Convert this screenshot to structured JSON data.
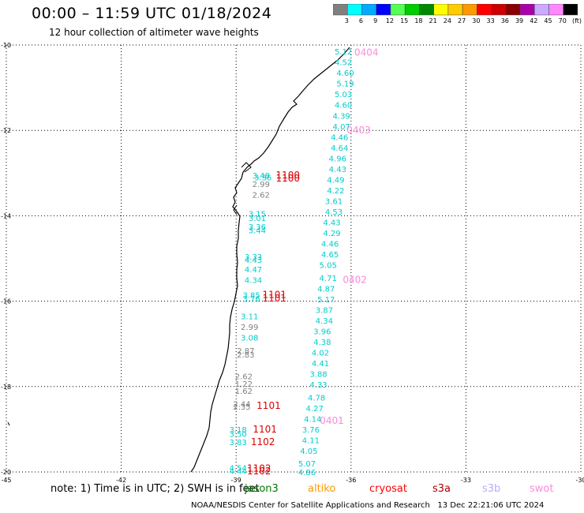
{
  "header": {
    "title": "00:00 – 11:59 UTC 01/18/2024",
    "subtitle": "12 hour collection of altimeter wave heights"
  },
  "colorbar": {
    "colors": [
      "#808080",
      "#00ffff",
      "#00aaff",
      "#0000ff",
      "#55ff55",
      "#00cc00",
      "#008800",
      "#ffff00",
      "#ffcc00",
      "#ff9900",
      "#ff0000",
      "#cc0000",
      "#880000",
      "#aa00aa",
      "#ccaaff",
      "#ff88ff",
      "#000000"
    ],
    "labels": [
      "3",
      "6",
      "9",
      "12",
      "15",
      "18",
      "21",
      "24",
      "27",
      "30",
      "33",
      "36",
      "39",
      "42",
      "45",
      "70",
      "(ft)"
    ]
  },
  "map": {
    "lat_labels": [
      "-10",
      "-12",
      "-14",
      "-16",
      "-18",
      "-20"
    ],
    "lon_labels": [
      "-45",
      "-42",
      "-39",
      "-36",
      "-33",
      "-30"
    ],
    "lat_range": [
      -20,
      -10
    ],
    "lon_range": [
      -45,
      -30
    ]
  },
  "swh_points": [
    {
      "lon": -36.2,
      "lat": -10.15,
      "v": "5.12",
      "c": "#00cccc"
    },
    {
      "lon": -36.2,
      "lat": -10.4,
      "v": "4.52",
      "c": "#00cccc"
    },
    {
      "lon": -36.15,
      "lat": -10.65,
      "v": "4.60",
      "c": "#00cccc"
    },
    {
      "lon": -36.15,
      "lat": -10.9,
      "v": "5.19",
      "c": "#00cccc"
    },
    {
      "lon": -36.2,
      "lat": -11.15,
      "v": "5.03",
      "c": "#00cccc"
    },
    {
      "lon": -36.2,
      "lat": -11.4,
      "v": "4.60",
      "c": "#00cccc"
    },
    {
      "lon": -36.25,
      "lat": -11.65,
      "v": "4.39",
      "c": "#00cccc"
    },
    {
      "lon": -36.25,
      "lat": -11.9,
      "v": "4.07",
      "c": "#00cccc"
    },
    {
      "lon": -36.3,
      "lat": -12.15,
      "v": "4.46",
      "c": "#00cccc"
    },
    {
      "lon": -36.3,
      "lat": -12.4,
      "v": "4.64",
      "c": "#00cccc"
    },
    {
      "lon": -36.35,
      "lat": -12.65,
      "v": "4.96",
      "c": "#00cccc"
    },
    {
      "lon": -36.35,
      "lat": -12.9,
      "v": "4.43",
      "c": "#00cccc"
    },
    {
      "lon": -36.4,
      "lat": -13.15,
      "v": "4.49",
      "c": "#00cccc"
    },
    {
      "lon": -36.4,
      "lat": -13.4,
      "v": "4.22",
      "c": "#00cccc"
    },
    {
      "lon": -36.45,
      "lat": -13.65,
      "v": "3.61",
      "c": "#00cccc"
    },
    {
      "lon": -36.45,
      "lat": -13.9,
      "v": "4.53",
      "c": "#00cccc"
    },
    {
      "lon": -36.5,
      "lat": -14.15,
      "v": "4.43",
      "c": "#00cccc"
    },
    {
      "lon": -36.5,
      "lat": -14.4,
      "v": "4.29",
      "c": "#00cccc"
    },
    {
      "lon": -36.55,
      "lat": -14.65,
      "v": "4.46",
      "c": "#00cccc"
    },
    {
      "lon": -36.55,
      "lat": -14.9,
      "v": "4.65",
      "c": "#00cccc"
    },
    {
      "lon": -36.6,
      "lat": -15.15,
      "v": "5.05",
      "c": "#00cccc"
    },
    {
      "lon": -36.6,
      "lat": -15.45,
      "v": "4.71",
      "c": "#00cccc"
    },
    {
      "lon": -36.65,
      "lat": -15.7,
      "v": "4.87",
      "c": "#00cccc"
    },
    {
      "lon": -36.65,
      "lat": -15.95,
      "v": "5.17",
      "c": "#00cccc"
    },
    {
      "lon": -36.7,
      "lat": -16.2,
      "v": "3.87",
      "c": "#00cccc"
    },
    {
      "lon": -36.7,
      "lat": -16.45,
      "v": "4.34",
      "c": "#00cccc"
    },
    {
      "lon": -36.75,
      "lat": -16.7,
      "v": "3.96",
      "c": "#00cccc"
    },
    {
      "lon": -36.75,
      "lat": -16.95,
      "v": "4.38",
      "c": "#00cccc"
    },
    {
      "lon": -36.8,
      "lat": -17.2,
      "v": "4.02",
      "c": "#00cccc"
    },
    {
      "lon": -36.8,
      "lat": -17.45,
      "v": "4.41",
      "c": "#00cccc"
    },
    {
      "lon": -36.85,
      "lat": -17.7,
      "v": "3.88",
      "c": "#00cccc"
    },
    {
      "lon": -36.85,
      "lat": -17.95,
      "v": "4.33",
      "c": "#00cccc"
    },
    {
      "lon": -36.9,
      "lat": -18.25,
      "v": "4.78",
      "c": "#00cccc"
    },
    {
      "lon": -36.95,
      "lat": -18.5,
      "v": "4.27",
      "c": "#00cccc"
    },
    {
      "lon": -37.0,
      "lat": -18.75,
      "v": "4.14",
      "c": "#00cccc"
    },
    {
      "lon": -37.05,
      "lat": -19.0,
      "v": "3.76",
      "c": "#00cccc"
    },
    {
      "lon": -37.05,
      "lat": -19.25,
      "v": "4.11",
      "c": "#00cccc"
    },
    {
      "lon": -37.1,
      "lat": -19.5,
      "v": "4.05",
      "c": "#00cccc"
    },
    {
      "lon": -37.15,
      "lat": -19.8,
      "v": "5.07",
      "c": "#00cccc"
    },
    {
      "lon": -37.15,
      "lat": -20.0,
      "v": "4.86",
      "c": "#00cccc"
    },
    {
      "lon": -38.35,
      "lat": -13.05,
      "v": "3.48",
      "c": "#00cccc"
    },
    {
      "lon": -38.3,
      "lat": -13.1,
      "v": "3.36",
      "c": "#00cccc"
    },
    {
      "lon": -38.35,
      "lat": -13.25,
      "v": "2.99",
      "c": "#808080"
    },
    {
      "lon": -38.35,
      "lat": -13.5,
      "v": "2.62",
      "c": "#808080"
    },
    {
      "lon": -38.45,
      "lat": -13.95,
      "v": "3.15",
      "c": "#00cccc"
    },
    {
      "lon": -38.45,
      "lat": -14.05,
      "v": "3.01",
      "c": "#00cccc"
    },
    {
      "lon": -38.45,
      "lat": -14.25,
      "v": "3.36",
      "c": "#00cccc"
    },
    {
      "lon": -38.45,
      "lat": -14.33,
      "v": "3.44",
      "c": "#00cccc"
    },
    {
      "lon": -38.55,
      "lat": -14.95,
      "v": "3.33",
      "c": "#00cccc"
    },
    {
      "lon": -38.55,
      "lat": -15.03,
      "v": "4.43",
      "c": "#00cccc"
    },
    {
      "lon": -38.55,
      "lat": -15.25,
      "v": "4.47",
      "c": "#00cccc"
    },
    {
      "lon": -38.55,
      "lat": -15.5,
      "v": "4.34",
      "c": "#00cccc"
    },
    {
      "lon": -38.6,
      "lat": -15.85,
      "v": "3.85",
      "c": "#00cccc"
    },
    {
      "lon": -38.6,
      "lat": -15.93,
      "v": "3.76",
      "c": "#00cccc"
    },
    {
      "lon": -38.65,
      "lat": -16.35,
      "v": "3.11",
      "c": "#00cccc"
    },
    {
      "lon": -38.65,
      "lat": -16.6,
      "v": "2.99",
      "c": "#808080"
    },
    {
      "lon": -38.65,
      "lat": -16.85,
      "v": "3.08",
      "c": "#00cccc"
    },
    {
      "lon": -38.75,
      "lat": -17.15,
      "v": "2.87",
      "c": "#808080"
    },
    {
      "lon": -38.75,
      "lat": -17.25,
      "v": "2.83",
      "c": "#808080"
    },
    {
      "lon": -38.8,
      "lat": -17.75,
      "v": "2.62",
      "c": "#808080"
    },
    {
      "lon": -38.8,
      "lat": -17.93,
      "v": "1.22",
      "c": "#808080"
    },
    {
      "lon": -38.8,
      "lat": -18.1,
      "v": "1.62",
      "c": "#808080"
    },
    {
      "lon": -38.85,
      "lat": -18.4,
      "v": "2.44",
      "c": "#808080"
    },
    {
      "lon": -38.85,
      "lat": -18.47,
      "v": "2.35",
      "c": "#808080"
    },
    {
      "lon": -38.95,
      "lat": -19.0,
      "v": "3.18",
      "c": "#00cccc"
    },
    {
      "lon": -38.95,
      "lat": -19.1,
      "v": "3.50",
      "c": "#00cccc"
    },
    {
      "lon": -38.95,
      "lat": -19.3,
      "v": "3.83",
      "c": "#00cccc"
    },
    {
      "lon": -38.95,
      "lat": -19.9,
      "v": "4.54",
      "c": "#00cccc"
    },
    {
      "lon": -38.95,
      "lat": -19.97,
      "v": "4.44",
      "c": "#00cccc"
    }
  ],
  "pass_labels": [
    {
      "lon": -35.6,
      "lat": -10.18,
      "t": "0404",
      "c": "#ff88dd"
    },
    {
      "lon": -35.8,
      "lat": -12.0,
      "t": "0403",
      "c": "#ff88dd"
    },
    {
      "lon": -35.9,
      "lat": -15.5,
      "t": "0402",
      "c": "#ff88dd"
    },
    {
      "lon": -36.5,
      "lat": -18.8,
      "t": "0401",
      "c": "#ff88dd"
    },
    {
      "lon": -37.65,
      "lat": -13.05,
      "t": "1100",
      "c": "#dd0000"
    },
    {
      "lon": -37.65,
      "lat": -13.12,
      "t": "1100",
      "c": "#dd0000"
    },
    {
      "lon": -38.0,
      "lat": -15.85,
      "t": "1101",
      "c": "#dd0000"
    },
    {
      "lon": -38.0,
      "lat": -15.93,
      "t": "1101",
      "c": "#dd0000"
    },
    {
      "lon": -38.15,
      "lat": -18.45,
      "t": "1101",
      "c": "#dd0000"
    },
    {
      "lon": -38.25,
      "lat": -19.0,
      "t": "1101",
      "c": "#dd0000"
    },
    {
      "lon": -38.3,
      "lat": -19.3,
      "t": "1102",
      "c": "#dd0000"
    },
    {
      "lon": -38.4,
      "lat": -19.92,
      "t": "1102",
      "c": "#dd0000"
    },
    {
      "lon": -38.4,
      "lat": -19.98,
      "t": "1102",
      "c": "#dd0000"
    }
  ],
  "footer": {
    "note": "note: 1) Time is in UTC; 2) SWH is in feet",
    "satellites": [
      {
        "name": "jason3",
        "color": "#007700"
      },
      {
        "name": "altiko",
        "color": "#ff9900"
      },
      {
        "name": "cryosat",
        "color": "#ff0000"
      },
      {
        "name": "s3a",
        "color": "#aa0000"
      },
      {
        "name": "s3b",
        "color": "#bbaaff"
      },
      {
        "name": "swot",
        "color": "#ff88dd"
      }
    ],
    "credit": "NOAA/NESDIS Center for Satellite Applications and Research   13 Dec 22:21:06 UTC 2024"
  }
}
